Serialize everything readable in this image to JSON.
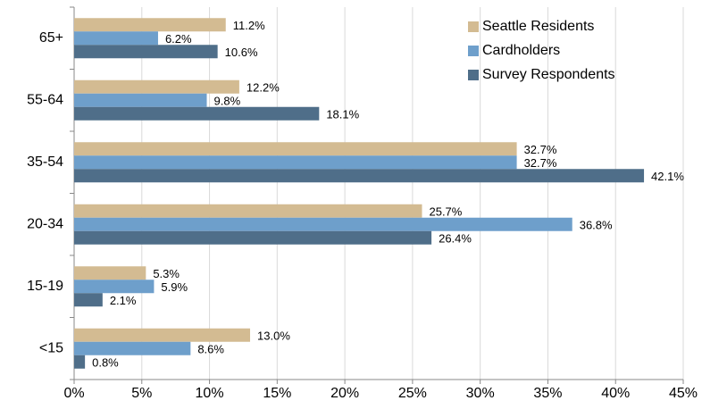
{
  "chart_data": {
    "type": "hbar",
    "categories": [
      "65+",
      "55-64",
      "35-54",
      "20-34",
      "15-19",
      "<15"
    ],
    "series": [
      {
        "name": "Seattle Residents",
        "color": "#d3bb92",
        "values": [
          11.2,
          12.2,
          32.7,
          25.7,
          5.3,
          13.0
        ],
        "value_labels": [
          "11.2%",
          "12.2%",
          "32.7%",
          "25.7%",
          "5.3%",
          "13.0%"
        ]
      },
      {
        "name": "Cardholders",
        "color": "#6e9fcb",
        "values": [
          6.2,
          9.8,
          32.7,
          36.8,
          5.9,
          8.6
        ],
        "value_labels": [
          "6.2%",
          "9.8%",
          "32.7%",
          "36.8%",
          "5.9%",
          "8.6%"
        ]
      },
      {
        "name": "Survey Respondents",
        "color": "#4f6e89",
        "values": [
          10.6,
          18.1,
          42.1,
          26.4,
          2.1,
          0.8
        ],
        "value_labels": [
          "10.6%",
          "18.1%",
          "42.1%",
          "26.4%",
          "2.1%",
          "0.8%"
        ]
      }
    ],
    "xlim": [
      0,
      45
    ],
    "xticks": [
      {
        "value": 0,
        "label": "0%"
      },
      {
        "value": 5,
        "label": "5%"
      },
      {
        "value": 10,
        "label": "10%"
      },
      {
        "value": 15,
        "label": "15%"
      },
      {
        "value": 20,
        "label": "20%"
      },
      {
        "value": 25,
        "label": "25%"
      },
      {
        "value": 30,
        "label": "30%"
      },
      {
        "value": 35,
        "label": "35%"
      },
      {
        "value": 40,
        "label": "40%"
      },
      {
        "value": 45,
        "label": "45%"
      }
    ],
    "grid": true,
    "legend": "top-right"
  }
}
